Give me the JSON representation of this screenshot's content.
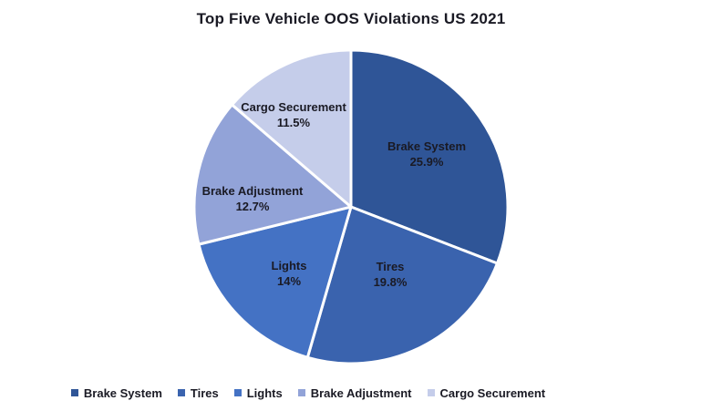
{
  "title": "Top Five Vehicle OOS Violations US 2021",
  "chart_data": {
    "type": "pie",
    "title": "Top Five Vehicle OOS Violations US 2021",
    "slices": [
      {
        "label": "Brake System",
        "value": 25.9,
        "display": "25.9%",
        "color": "#2F5597",
        "label_pos": [
          468,
          169
        ]
      },
      {
        "label": "Tires",
        "value": 19.8,
        "display": "19.8%",
        "color": "#3A63AE",
        "label_pos": [
          428,
          301
        ]
      },
      {
        "label": "Lights",
        "value": 14,
        "display": "14%",
        "color": "#4472C4",
        "label_pos": [
          317,
          300
        ]
      },
      {
        "label": "Brake Adjustment",
        "value": 12.7,
        "display": "12.7%",
        "color": "#92A3D8",
        "label_pos": [
          277,
          218
        ]
      },
      {
        "label": "Cargo Securement",
        "value": 11.5,
        "display": "11.5%",
        "color": "#C5CDEA",
        "label_pos": [
          322,
          126
        ]
      }
    ],
    "start_angle_deg": 0,
    "direction": "clockwise",
    "values_normalized_to_total": true,
    "values_sum": 83.9,
    "center": [
      385,
      227
    ],
    "radius": 172,
    "separator_color": "#FFFFFF",
    "separator_width": 3,
    "label_color": "#1a1a24",
    "legend_position": "bottom",
    "background": "#FFFFFF"
  }
}
